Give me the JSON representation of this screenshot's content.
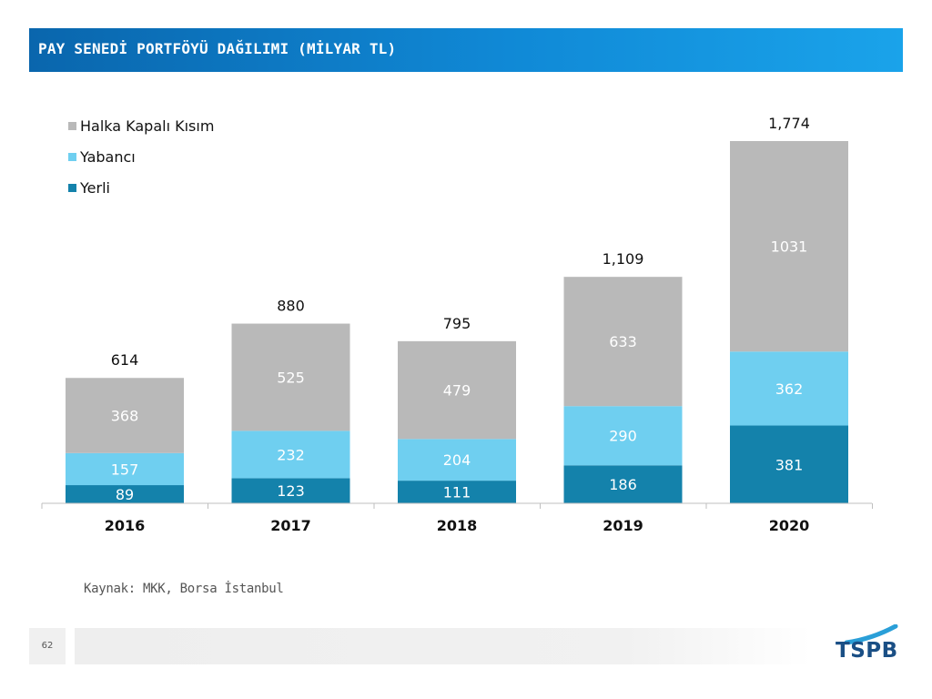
{
  "page": {
    "title": "PAY SENEDİ PORTFÖYÜ DAĞILIMI (MİLYAR TL)",
    "source": "Kaynak: MKK, Borsa İstanbul",
    "page_number": "62",
    "logo_text": "TSPB"
  },
  "colors": {
    "header": "#0a66ad",
    "halka_kapali": "#b9b9b9",
    "yabanci": "#6fcff0",
    "yerli": "#1482ab"
  },
  "chart_data": {
    "type": "bar",
    "stacked": true,
    "categories": [
      "2016",
      "2017",
      "2018",
      "2019",
      "2020"
    ],
    "series": [
      {
        "name": "Yerli",
        "values": [
          89,
          123,
          111,
          186,
          381
        ],
        "labels": [
          "89",
          "123",
          "111",
          "186",
          "381"
        ],
        "color": "#1482ab"
      },
      {
        "name": "Yabancı",
        "values": [
          157,
          232,
          204,
          290,
          362
        ],
        "labels": [
          "157",
          "232",
          "204",
          "290",
          "362"
        ],
        "color": "#6fcff0"
      },
      {
        "name": "Halka Kapalı Kısım",
        "values": [
          368,
          525,
          479,
          633,
          1031
        ],
        "labels": [
          "368",
          "525",
          "479",
          "633",
          "1031"
        ],
        "color": "#b9b9b9"
      }
    ],
    "totals": [
      "614",
      "880",
      "795",
      "1,109",
      "1,774"
    ],
    "legend_order": [
      "Halka Kapalı Kısım",
      "Yabancı",
      "Yerli"
    ],
    "legend_position": "top-left",
    "ylim": [
      0,
      1774
    ],
    "grid": false,
    "title": "",
    "xlabel": "",
    "ylabel": ""
  }
}
